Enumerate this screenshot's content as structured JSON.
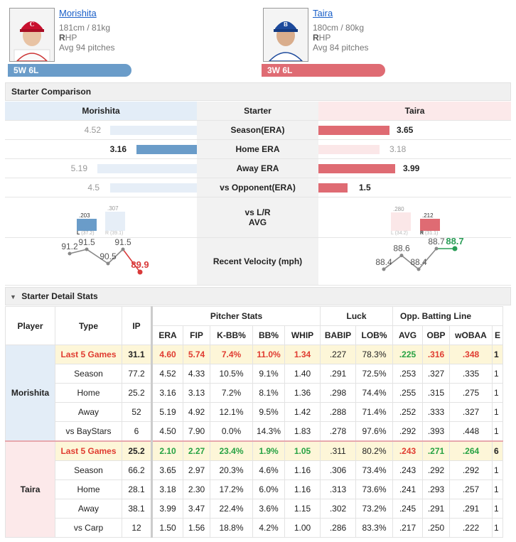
{
  "pitchers": {
    "left": {
      "name": "Morishita",
      "height_weight": "181cm / 81kg",
      "hand_letter": "R",
      "hand_rest": "HP",
      "avg_pitches": "Avg 94 pitches",
      "record": "5W 6L",
      "color": "#6a9cc9"
    },
    "right": {
      "name": "Taira",
      "height_weight": "180cm / 80kg",
      "hand_letter": "R",
      "hand_rest": "HP",
      "avg_pitches": "Avg 84 pitches",
      "record": "3W 6L",
      "color": "#df6b73"
    }
  },
  "comparison": {
    "title": "Starter Comparison",
    "header": {
      "left": "Morishita",
      "mid": "Starter",
      "right": "Taira"
    },
    "rows": [
      {
        "label": "Season(ERA)",
        "left": "4.52",
        "right": "3.65",
        "left_better": false
      },
      {
        "label": "Home ERA",
        "left": "3.16",
        "right": "3.18",
        "left_better": true
      },
      {
        "label": "Away ERA",
        "left": "5.19",
        "right": "3.99",
        "left_better": false
      },
      {
        "label": "vs Opponent(ERA)",
        "left": "4.5",
        "right": "1.5",
        "left_better": false
      }
    ],
    "lr": {
      "label_line1": "vs L/R",
      "label_line2": "AVG",
      "left": {
        "l_val": ".203",
        "l_lab": "L",
        "l_ip": "(37.2)",
        "r_val": ".307",
        "r_lab": "R",
        "r_ip": "(39.1)"
      },
      "right": {
        "l_val": ".280",
        "l_lab": "L",
        "l_ip": "(34.2)",
        "r_val": ".212",
        "r_lab": "R",
        "r_ip": "(31.1)"
      }
    },
    "velocity": {
      "label": "Recent Velocity (mph)",
      "left": [
        "91.2",
        "91.5",
        "90.5",
        "91.5",
        "89.9"
      ],
      "right": [
        "88.4",
        "88.6",
        "88.4",
        "88.7",
        "88.7"
      ]
    }
  },
  "detail": {
    "title": "Starter Detail Stats",
    "head": {
      "player": "Player",
      "type": "Type",
      "ip": "IP",
      "group_pitcher": "Pitcher Stats",
      "group_luck": "Luck",
      "group_opp": "Opp. Batting Line",
      "cols": [
        "ERA",
        "FIP",
        "K-BB%",
        "BB%",
        "WHIP",
        "BABIP",
        "LOB%",
        "AVG",
        "OBP",
        "wOBAA",
        "E"
      ]
    },
    "morishita": {
      "name": "Morishita",
      "rows": [
        [
          "Last 5 Games",
          "31.1",
          "4.60",
          "5.74",
          "7.4%",
          "11.0%",
          "1.34",
          ".227",
          "78.3%",
          ".225",
          ".316",
          ".348",
          "1"
        ],
        [
          "Season",
          "77.2",
          "4.52",
          "4.33",
          "10.5%",
          "9.1%",
          "1.40",
          ".291",
          "72.5%",
          ".253",
          ".327",
          ".335",
          "1"
        ],
        [
          "Home",
          "25.2",
          "3.16",
          "3.13",
          "7.2%",
          "8.1%",
          "1.36",
          ".298",
          "74.4%",
          ".255",
          ".315",
          ".275",
          "1"
        ],
        [
          "Away",
          "52",
          "5.19",
          "4.92",
          "12.1%",
          "9.5%",
          "1.42",
          ".288",
          "71.4%",
          ".252",
          ".333",
          ".327",
          "1"
        ],
        [
          "vs BayStars",
          "6",
          "4.50",
          "7.90",
          "0.0%",
          "14.3%",
          "1.83",
          ".278",
          "97.6%",
          ".292",
          ".393",
          ".448",
          "1"
        ]
      ]
    },
    "taira": {
      "name": "Taira",
      "rows": [
        [
          "Last 5 Games",
          "25.2",
          "2.10",
          "2.27",
          "23.4%",
          "1.9%",
          "1.05",
          ".311",
          "80.2%",
          ".243",
          ".271",
          ".264",
          "6"
        ],
        [
          "Season",
          "66.2",
          "3.65",
          "2.97",
          "20.3%",
          "4.6%",
          "1.16",
          ".306",
          "73.4%",
          ".243",
          ".292",
          ".292",
          "1"
        ],
        [
          "Home",
          "28.1",
          "3.18",
          "2.30",
          "17.2%",
          "6.0%",
          "1.16",
          ".313",
          "73.6%",
          ".241",
          ".293",
          ".257",
          "1"
        ],
        [
          "Away",
          "38.1",
          "3.99",
          "3.47",
          "22.4%",
          "3.6%",
          "1.15",
          ".302",
          "73.2%",
          ".245",
          ".291",
          ".291",
          "1"
        ],
        [
          "vs Carp",
          "12",
          "1.50",
          "1.56",
          "18.8%",
          "4.2%",
          "1.00",
          ".286",
          "83.3%",
          ".217",
          ".250",
          ".222",
          "1"
        ]
      ]
    }
  }
}
